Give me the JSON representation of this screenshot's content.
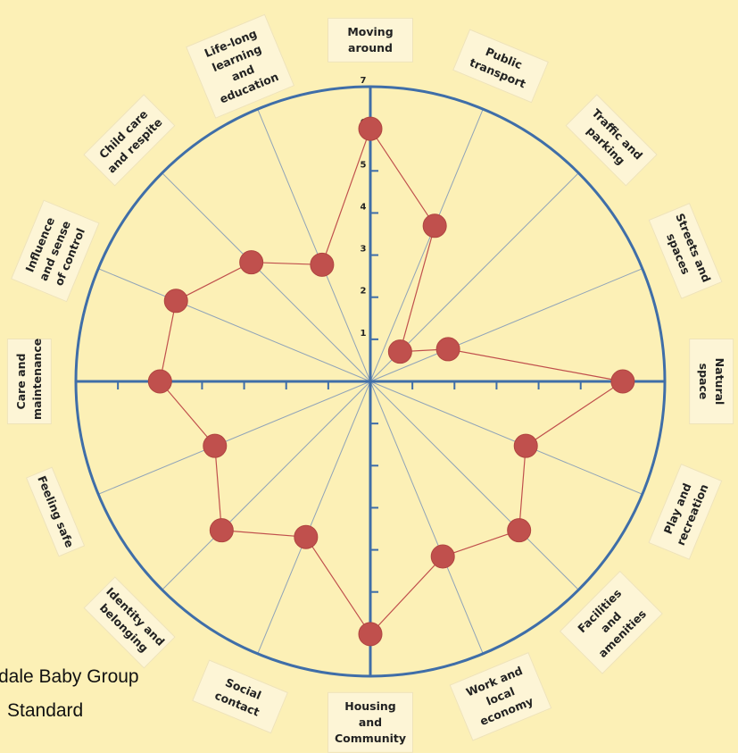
{
  "chart_data": {
    "type": "radar",
    "categories": [
      "Moving around",
      "Public transport",
      "Traffic and parking",
      "Streets and spaces",
      "Natural space",
      "Play and recreation",
      "Facilities and amenities",
      "Work and local economy",
      "Housing and Community",
      "Social contact",
      "Identity and belonging",
      "Feeling safe",
      "Care and maintenance",
      "Influence and sense of control",
      "Child care and respite",
      "Life-long learning and education"
    ],
    "values": [
      6,
      4,
      1,
      2,
      6,
      4,
      5,
      4.5,
      6,
      4,
      5,
      4,
      5,
      5,
      4,
      3
    ],
    "color": "#c0504d",
    "rlim": [
      0,
      7
    ],
    "rticks": [
      1,
      2,
      3,
      4,
      5,
      6,
      7
    ],
    "axis_color": "#3f6ea8",
    "annotations": [
      "dale Baby Group",
      "Standard"
    ]
  }
}
